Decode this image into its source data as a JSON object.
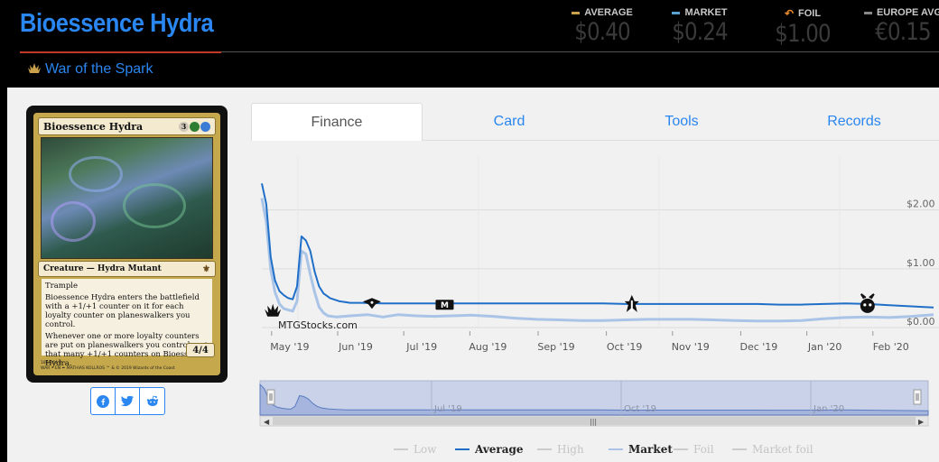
{
  "header": {
    "title": "Bioessence Hydra",
    "set_name": "War of the Spark",
    "set_icon": "war-of-the-spark-set-icon"
  },
  "stats": [
    {
      "label": "AVERAGE",
      "value": "$0.40",
      "color": "#c9a14a"
    },
    {
      "label": "MARKET",
      "value": "$0.24",
      "color": "#5aa0d0"
    },
    {
      "label": "FOIL",
      "value": "$1.00",
      "color": "#e8882a"
    },
    {
      "label": "EUROPE AVG",
      "value": "€0.15",
      "color": "#888888"
    }
  ],
  "card": {
    "name": "Bioessence Hydra",
    "mana_cost": "3",
    "type_line": "Creature — Hydra Mutant",
    "rules": [
      "Trample",
      "Bioessence Hydra enters the battlefield with a +1/+1 counter on it for each loyalty counter on planeswalkers you control.",
      "Whenever one or more loyalty counters are put on planeswalkers you control, put that many +1/+1 counters on Bioessence Hydra."
    ],
    "power_toughness": "4/4",
    "footer_line1": "186/264 R",
    "footer_line2": "WAR • EN ✒ MATHIAS KOLLROS",
    "copyright": "™ & © 2019 Wizards of the Coast"
  },
  "share": [
    "facebook-icon",
    "twitter-icon",
    "reddit-icon"
  ],
  "tabs": [
    {
      "label": "Finance",
      "active": true
    },
    {
      "label": "Card",
      "active": false
    },
    {
      "label": "Tools",
      "active": false
    },
    {
      "label": "Records",
      "active": false
    }
  ],
  "chart_data": {
    "type": "line",
    "watermark": "MTGStocks.com",
    "y_ticks": [
      "$0.00",
      "$1.00",
      "$2.00"
    ],
    "x_ticks": [
      "May '19",
      "Jun '19",
      "Jul '19",
      "Aug '19",
      "Sep '19",
      "Oct '19",
      "Nov '19",
      "Dec '19",
      "Jan '20",
      "Feb '20"
    ],
    "navigator_ticks": [
      "Jul '19",
      "Oct '19",
      "Jan '20"
    ],
    "ylim": [
      0,
      2.9
    ],
    "x_days_total": 305,
    "grid": true,
    "legend_position": "bottom",
    "set_release_markers": [
      "war-of-the-spark-icon",
      "modern-horizons-icon",
      "core-set-2020-icon",
      "throne-of-eldraine-icon",
      "theros-beyond-death-icon"
    ],
    "series": [
      {
        "name": "Average",
        "color": "#1f6fc8",
        "visible": true,
        "points": [
          [
            0,
            2.45
          ],
          [
            2,
            2.1
          ],
          [
            4,
            1.2
          ],
          [
            6,
            0.8
          ],
          [
            8,
            0.62
          ],
          [
            10,
            0.55
          ],
          [
            12,
            0.5
          ],
          [
            14,
            0.48
          ],
          [
            16,
            0.7
          ],
          [
            18,
            1.55
          ],
          [
            20,
            1.48
          ],
          [
            22,
            1.3
          ],
          [
            24,
            0.95
          ],
          [
            26,
            0.7
          ],
          [
            28,
            0.58
          ],
          [
            31,
            0.5
          ],
          [
            35,
            0.45
          ],
          [
            40,
            0.42
          ],
          [
            45,
            0.42
          ],
          [
            55,
            0.41
          ],
          [
            65,
            0.41
          ],
          [
            75,
            0.41
          ],
          [
            85,
            0.41
          ],
          [
            95,
            0.41
          ],
          [
            105,
            0.41
          ],
          [
            115,
            0.41
          ],
          [
            125,
            0.41
          ],
          [
            135,
            0.41
          ],
          [
            145,
            0.41
          ],
          [
            155,
            0.41
          ],
          [
            165,
            0.4
          ],
          [
            175,
            0.4
          ],
          [
            185,
            0.4
          ],
          [
            195,
            0.4
          ],
          [
            205,
            0.4
          ],
          [
            215,
            0.4
          ],
          [
            225,
            0.4
          ],
          [
            235,
            0.39
          ],
          [
            245,
            0.39
          ],
          [
            255,
            0.4
          ],
          [
            265,
            0.41
          ],
          [
            275,
            0.4
          ],
          [
            285,
            0.38
          ],
          [
            295,
            0.36
          ],
          [
            305,
            0.34
          ]
        ]
      },
      {
        "name": "Market",
        "color": "#a9c4e6",
        "visible": true,
        "points": [
          [
            0,
            2.2
          ],
          [
            2,
            1.8
          ],
          [
            4,
            1.0
          ],
          [
            6,
            0.6
          ],
          [
            8,
            0.4
          ],
          [
            10,
            0.32
          ],
          [
            12,
            0.3
          ],
          [
            14,
            0.28
          ],
          [
            16,
            0.45
          ],
          [
            18,
            1.3
          ],
          [
            20,
            1.25
          ],
          [
            22,
            0.9
          ],
          [
            24,
            0.6
          ],
          [
            26,
            0.35
          ],
          [
            28,
            0.25
          ],
          [
            30,
            0.2
          ],
          [
            34,
            0.18
          ],
          [
            40,
            0.2
          ],
          [
            48,
            0.22
          ],
          [
            55,
            0.18
          ],
          [
            62,
            0.22
          ],
          [
            70,
            0.2
          ],
          [
            78,
            0.19
          ],
          [
            86,
            0.2
          ],
          [
            95,
            0.21
          ],
          [
            105,
            0.19
          ],
          [
            115,
            0.16
          ],
          [
            125,
            0.14
          ],
          [
            135,
            0.13
          ],
          [
            145,
            0.12
          ],
          [
            155,
            0.12
          ],
          [
            165,
            0.13
          ],
          [
            175,
            0.14
          ],
          [
            185,
            0.14
          ],
          [
            195,
            0.14
          ],
          [
            205,
            0.13
          ],
          [
            215,
            0.12
          ],
          [
            225,
            0.11
          ],
          [
            235,
            0.11
          ],
          [
            245,
            0.12
          ],
          [
            255,
            0.15
          ],
          [
            265,
            0.17
          ],
          [
            275,
            0.18
          ],
          [
            285,
            0.17
          ],
          [
            295,
            0.19
          ],
          [
            305,
            0.22
          ]
        ]
      }
    ],
    "legend": [
      {
        "name": "Low",
        "color": "#cccccc",
        "visible": false
      },
      {
        "name": "Average",
        "color": "#1f6fc8",
        "visible": true
      },
      {
        "name": "High",
        "color": "#cccccc",
        "visible": false
      },
      {
        "name": "Market",
        "color": "#a9c4e6",
        "visible": true
      },
      {
        "name": "Foil",
        "color": "#cccccc",
        "visible": false
      },
      {
        "name": "Market foil",
        "color": "#cccccc",
        "visible": false
      }
    ]
  }
}
